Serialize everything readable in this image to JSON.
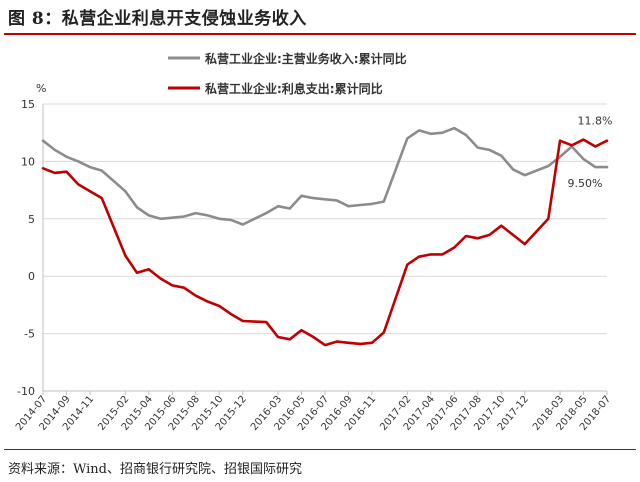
{
  "figure": {
    "title": "图 8：私营企业利息开支侵蚀业务收入",
    "source": "资料来源：Wind、招商银行研究院、招银国际研究"
  },
  "chart_data": {
    "type": "line",
    "ylabel": "%",
    "ylim": [
      -10,
      15
    ],
    "yticks": [
      -10,
      -5,
      0,
      5,
      10,
      15
    ],
    "grid": true,
    "legend": "top",
    "x": [
      "2014-07",
      "2014-08",
      "2014-09",
      "2014-10",
      "2014-11",
      "2014-12",
      "2015-01",
      "2015-02",
      "2015-03",
      "2015-04",
      "2015-05",
      "2015-06",
      "2015-07",
      "2015-08",
      "2015-09",
      "2015-10",
      "2015-11",
      "2015-12",
      "2016-01",
      "2016-02",
      "2016-03",
      "2016-04",
      "2016-05",
      "2016-06",
      "2016-07",
      "2016-08",
      "2016-09",
      "2016-10",
      "2016-11",
      "2016-12",
      "2017-01",
      "2017-02",
      "2017-03",
      "2017-04",
      "2017-05",
      "2017-06",
      "2017-07",
      "2017-08",
      "2017-09",
      "2017-10",
      "2017-11",
      "2017-12",
      "2018-01",
      "2018-02",
      "2018-03",
      "2018-04",
      "2018-05",
      "2018-06",
      "2018-07"
    ],
    "xtick_labels": [
      "2014-07",
      "2014-09",
      "2014-11",
      "2015-02",
      "2015-04",
      "2015-06",
      "2015-08",
      "2015-10",
      "2015-12",
      "2016-03",
      "2016-05",
      "2016-07",
      "2016-09",
      "2016-11",
      "2017-02",
      "2017-04",
      "2017-06",
      "2017-08",
      "2017-10",
      "2017-12",
      "2018-03",
      "2018-05",
      "2018-07"
    ],
    "series": [
      {
        "name": "私营工业企业:主营业务收入:累计同比",
        "color": "#8c8c8c",
        "values": [
          11.8,
          11.0,
          10.4,
          10.0,
          9.5,
          9.2,
          null,
          7.4,
          6.0,
          5.3,
          5.0,
          5.1,
          5.2,
          5.5,
          5.3,
          5.0,
          4.9,
          4.5,
          null,
          5.5,
          6.1,
          5.9,
          7.0,
          6.8,
          6.7,
          6.6,
          6.1,
          6.2,
          6.3,
          6.5,
          null,
          12.0,
          12.7,
          12.4,
          12.5,
          12.9,
          12.3,
          11.2,
          11.0,
          10.5,
          9.3,
          8.8,
          null,
          9.6,
          10.4,
          11.3,
          10.2,
          9.5,
          9.5
        ]
      },
      {
        "name": "私营工业企业:利息支出:累计同比",
        "color": "#c00000",
        "values": [
          9.4,
          9.0,
          9.1,
          8.0,
          7.4,
          6.8,
          null,
          1.8,
          0.3,
          0.6,
          -0.2,
          -0.8,
          -1.0,
          -1.7,
          -2.2,
          -2.6,
          -3.3,
          -3.9,
          null,
          -4.0,
          -5.3,
          -5.5,
          -4.7,
          -5.3,
          -6.0,
          -5.7,
          -5.8,
          -5.9,
          -5.8,
          -4.9,
          null,
          1.0,
          1.7,
          1.9,
          1.9,
          2.5,
          3.5,
          3.3,
          3.6,
          4.4,
          3.6,
          2.8,
          null,
          5.0,
          11.8,
          11.4,
          11.9,
          11.3,
          11.8
        ]
      }
    ],
    "annotations": [
      {
        "text": "11.8%",
        "series": 1,
        "index": 48,
        "value": 11.8
      },
      {
        "text": "9.50%",
        "series": 0,
        "index": 48,
        "value": 9.5
      }
    ]
  }
}
